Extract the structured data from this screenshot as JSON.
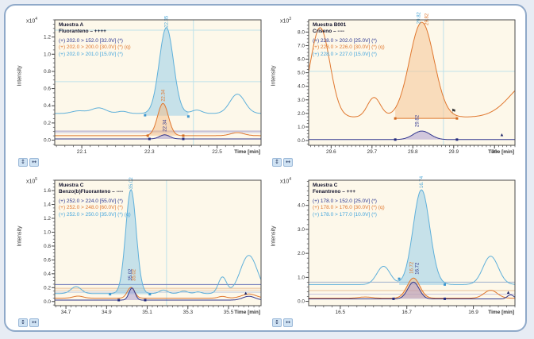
{
  "figure": {
    "outer_background": "#e7ecf4",
    "card_background": "#ffffff",
    "card_border": "#8fa9c9",
    "plot_background": "#fdf8ea",
    "axis_color": "#4a4a4a",
    "crosshair_color": "#bfe2ea",
    "tick_label_color": "#333333"
  },
  "ui": {
    "corner_buttons": [
      {
        "glyph": "↕",
        "name": "autoscale-y-button"
      },
      {
        "glyph": "↔",
        "name": "autoscale-x-button"
      }
    ]
  },
  "chart_data": [
    {
      "id": "muestra-a-fluoranteno",
      "type": "line",
      "scale_base": "x10",
      "scale_exp": "4",
      "ylabel": "Intensity",
      "xlabel": "Time [min]",
      "sample": "Muestra A",
      "compound": "Fluoranteno – ++++",
      "transitions": [
        {
          "label": "(+) 202.0 > 152.0 [32.0V] (*)",
          "color": "#2b3590"
        },
        {
          "label": "(+) 202.0 > 200.0 [30.0V] (*) (q)",
          "color": "#e0772e"
        },
        {
          "label": "(+) 202.0 > 201.0 [15.0V] (*)",
          "color": "#3fa3dc"
        }
      ],
      "x_range": [
        22.02,
        22.63
      ],
      "y_range": [
        -0.06,
        1.4
      ],
      "x_tick_vals": [
        22.1,
        22.3,
        22.5
      ],
      "x_tick_labels": [
        "22.1",
        "22.3",
        "22.5"
      ],
      "y_tick_vals": [
        0.0,
        0.2,
        0.4,
        0.6,
        0.8,
        1.0,
        1.2
      ],
      "x_minor_step": 0.025,
      "y_minor_step": 0.05,
      "crosshairs": {
        "v": [
          22.43
        ],
        "h": [
          1.28,
          0.68
        ]
      },
      "hlines": [
        {
          "y": 0.105,
          "color": "#a49fcb"
        },
        {
          "y": 0.088,
          "color": "#c8c5de"
        }
      ],
      "series": [
        {
          "name": "light-blue-trace",
          "color": "#5fb0da",
          "baseline": 0.31,
          "peaks": [
            [
              22.09,
              0.03,
              0.02
            ],
            [
              22.15,
              0.065,
              0.022
            ],
            [
              22.22,
              0.025,
              0.015
            ],
            [
              22.35,
              1.0,
              0.021
            ],
            [
              22.44,
              0.04,
              0.015
            ],
            [
              22.56,
              0.225,
              0.022
            ]
          ],
          "fill": {
            "from": 22.287,
            "to": 22.415,
            "base": 0.285,
            "color": "rgba(144,202,232,0.5)"
          }
        },
        {
          "name": "orange-trace",
          "color": "#e0772e",
          "baseline": 0.052,
          "peaks": [
            [
              22.34,
              0.375,
              0.016
            ],
            [
              22.56,
              0.035,
              0.02
            ]
          ],
          "fill": {
            "from": 22.295,
            "to": 22.4,
            "base": 0.052,
            "color": "rgba(243,188,134,0.5)"
          }
        },
        {
          "name": "navy-trace",
          "color": "#32378f",
          "baseline": 0.014,
          "peaks": [
            [
              22.345,
              0.048,
              0.015
            ]
          ],
          "fill": {
            "from": 22.3,
            "to": 22.4,
            "base": 0.014,
            "color": "rgba(160,145,200,0.5)"
          }
        }
      ],
      "segments": [],
      "markers": [
        {
          "x": 22.287,
          "y": 0.29,
          "color": "#3f97cf"
        },
        {
          "x": 22.415,
          "y": 0.275,
          "color": "#3f97cf"
        },
        {
          "x": 22.295,
          "y": 0.052,
          "color": "#d2691e"
        },
        {
          "x": 22.4,
          "y": 0.052,
          "color": "#d2691e"
        },
        {
          "x": 22.3,
          "y": 0.014,
          "color": "#232a7a"
        },
        {
          "x": 22.4,
          "y": 0.014,
          "color": "#232a7a"
        }
      ],
      "peak_labels": [
        {
          "x": 22.35,
          "y": 1.31,
          "text": "22.35",
          "color": "#4fa8d8"
        },
        {
          "x": 22.34,
          "y": 0.45,
          "text": "22.34",
          "color": "#e0772e"
        },
        {
          "x": 22.345,
          "y": 0.1,
          "text": "22.34",
          "color": "#32378f"
        }
      ],
      "glyphs": []
    },
    {
      "id": "muestra-b001-criseno",
      "type": "line",
      "scale_base": "x10",
      "scale_exp": "3",
      "ylabel": "Intensity",
      "xlabel": "Time [min]",
      "sample": "Muestra B001",
      "compound": "Criseno – ----",
      "transitions": [
        {
          "label": "(+) 228.0 > 202.0 [25.0V] (*)",
          "color": "#2b3590"
        },
        {
          "label": "(+) 228.0 > 226.0 [30.0V] (*) (q)",
          "color": "#e0772e"
        },
        {
          "label": "(+) 228.0 > 227.0 [15.0V] (*)",
          "color": "#3fa3dc"
        }
      ],
      "x_range": [
        29.545,
        30.05
      ],
      "y_range": [
        -0.35,
        8.9
      ],
      "x_tick_vals": [
        29.6,
        29.7,
        29.8,
        29.9,
        30
      ],
      "x_tick_labels": [
        "29.6",
        "29.7",
        "29.8",
        "29.9",
        "30"
      ],
      "y_tick_vals": [
        0.0,
        1.0,
        2.0,
        3.0,
        4.0,
        5.0,
        6.0,
        7.0,
        8.0
      ],
      "x_minor_step": 0.01,
      "y_minor_step": 0.25,
      "crosshairs": {
        "v": [
          29.875
        ],
        "h": [
          5.1
        ]
      },
      "hlines": [],
      "series": [
        {
          "name": "orange-trace",
          "color": "#e0772e",
          "baseline": 1.72,
          "peaks": [
            [
              29.573,
              6.6,
              0.024
            ],
            [
              29.705,
              1.45,
              0.016
            ],
            [
              29.822,
              7.0,
              0.03
            ],
            [
              30.09,
              2.7,
              0.05
            ]
          ],
          "fill": {
            "from": 29.757,
            "to": 29.908,
            "base": 1.63,
            "color": "rgba(246,196,148,0.55)"
          }
        },
        {
          "name": "navy-trace",
          "color": "#32378f",
          "baseline": 0.07,
          "peaks": [
            [
              29.822,
              0.63,
              0.021
            ]
          ],
          "fill": {
            "from": 29.757,
            "to": 29.908,
            "base": 0.07,
            "color": "rgba(165,150,205,0.5)"
          }
        }
      ],
      "segments": [
        {
          "x1": 29.757,
          "x2": 29.908,
          "y": 1.63,
          "color": "#e0772e"
        }
      ],
      "markers": [
        {
          "x": 29.757,
          "y": 1.63,
          "color": "#d2691e"
        },
        {
          "x": 29.908,
          "y": 1.63,
          "color": "#d2691e"
        },
        {
          "x": 29.757,
          "y": 0.07,
          "color": "#232a7a"
        },
        {
          "x": 29.908,
          "y": 0.07,
          "color": "#232a7a"
        }
      ],
      "peak_labels": [
        {
          "x": 29.814,
          "y": 8.6,
          "text": "29.82",
          "color": "#4fa8d8"
        },
        {
          "x": 29.833,
          "y": 8.5,
          "text": "29.82",
          "color": "#e0772e"
        },
        {
          "x": 29.81,
          "y": 1.0,
          "text": "29.82",
          "color": "#32378f"
        }
      ],
      "glyphs": [
        {
          "x": 29.9,
          "y": 2.05,
          "char": "⚑",
          "color": "#333333",
          "size": 7
        },
        {
          "x": 30.018,
          "y": 0.33,
          "char": "▲",
          "color": "#1c2266",
          "size": 6
        }
      ]
    },
    {
      "id": "muestra-c-benzo-b-fluoranteno",
      "type": "line",
      "scale_base": "x10",
      "scale_exp": "5",
      "ylabel": "Intensity",
      "xlabel": "Time [min]",
      "sample": "Muestra C",
      "compound": "Benzo(b)Fluoranteno – ----",
      "transitions": [
        {
          "label": "(+) 252.0 > 224.0 [55.0V] (*)",
          "color": "#2b3590"
        },
        {
          "label": "(+) 252.0 > 248.0 [60.0V] (*)",
          "color": "#e0772e"
        },
        {
          "label": "(+) 252.0 > 250.0 [35.0V] (*) (q)",
          "color": "#3fa3dc"
        }
      ],
      "x_range": [
        34.645,
        35.66
      ],
      "y_range": [
        -0.06,
        1.75
      ],
      "x_tick_vals": [
        34.7,
        34.9,
        35.1,
        35.3,
        35.5
      ],
      "x_tick_labels": [
        "34.7",
        "34.9",
        "35.1",
        "35.3",
        "35.5"
      ],
      "y_tick_vals": [
        0.0,
        0.2,
        0.4,
        0.6,
        0.8,
        1.0,
        1.2,
        1.4,
        1.6
      ],
      "x_minor_step": 0.025,
      "y_minor_step": 0.05,
      "crosshairs": {
        "v": [
          35.195
        ],
        "h": []
      },
      "hlines": [
        {
          "y": 0.245,
          "color": "#6a74b8"
        },
        {
          "y": 0.19,
          "color": "#e8bf96"
        },
        {
          "y": 0.165,
          "color": "#edd0b0"
        },
        {
          "y": 0.135,
          "color": "#b9c3da"
        }
      ],
      "series": [
        {
          "name": "light-blue-trace",
          "color": "#5fb0da",
          "baseline": 0.115,
          "peaks": [
            [
              34.75,
              0.1,
              0.025
            ],
            [
              35.02,
              1.5,
              0.026
            ],
            [
              35.18,
              0.05,
              0.02
            ],
            [
              35.28,
              0.035,
              0.02
            ],
            [
              35.35,
              0.025,
              0.015
            ],
            [
              35.47,
              0.235,
              0.02
            ],
            [
              35.6,
              0.55,
              0.042
            ]
          ],
          "fill": {
            "from": 34.917,
            "to": 35.113,
            "base": 0.105,
            "color": "rgba(144,202,232,0.5)"
          }
        },
        {
          "name": "orange-trace",
          "color": "#e0772e",
          "baseline": 0.048,
          "peaks": [
            [
              34.76,
              0.03,
              0.025
            ],
            [
              35.02,
              0.155,
              0.018
            ],
            [
              35.47,
              0.025,
              0.02
            ],
            [
              35.6,
              0.06,
              0.035
            ]
          ]
        },
        {
          "name": "navy-trace",
          "color": "#32378f",
          "baseline": 0.02,
          "peaks": [
            [
              35.025,
              0.175,
              0.015
            ],
            [
              35.6,
              0.055,
              0.03
            ]
          ],
          "fill": {
            "from": 34.96,
            "to": 35.09,
            "base": 0.02,
            "color": "rgba(165,150,205,0.5)"
          }
        }
      ],
      "segments": [],
      "markers": [
        {
          "x": 34.917,
          "y": 0.105,
          "color": "#3f97cf"
        },
        {
          "x": 35.113,
          "y": 0.105,
          "color": "#3f97cf"
        },
        {
          "x": 34.96,
          "y": 0.02,
          "color": "#232a7a"
        },
        {
          "x": 35.09,
          "y": 0.02,
          "color": "#232a7a"
        }
      ],
      "peak_labels": [
        {
          "x": 35.02,
          "y": 1.62,
          "text": "35.02",
          "color": "#4fa8d8"
        },
        {
          "x": 35.016,
          "y": 0.3,
          "text": "35.02",
          "color": "#32378f"
        },
        {
          "x": 35.034,
          "y": 0.295,
          "text": "35.02",
          "color": "#e0772e"
        }
      ],
      "glyphs": [
        {
          "x": 35.585,
          "y": 0.1,
          "char": "▲",
          "color": "#1c2266",
          "size": 6
        }
      ]
    },
    {
      "id": "muestra-c-fenantreno",
      "type": "line",
      "scale_base": "x10",
      "scale_exp": "4",
      "ylabel": "Intensity",
      "xlabel": "Time [min]",
      "sample": "Muestra C",
      "compound": "Fenantreno – +++",
      "transitions": [
        {
          "label": "(+) 178.0 > 152.0 [25.0V] (*)",
          "color": "#2b3590"
        },
        {
          "label": "(+) 178.0 > 176.0 [30.0V] (*) (q)",
          "color": "#e0772e"
        },
        {
          "label": "(+) 178.0 > 177.0 [10.0V] (*)",
          "color": "#3fa3dc"
        }
      ],
      "x_range": [
        16.405,
        17.025
      ],
      "y_range": [
        -0.18,
        5.05
      ],
      "x_tick_vals": [
        16.5,
        16.7,
        16.9
      ],
      "x_tick_labels": [
        "16.5",
        "16.7",
        "16.9"
      ],
      "y_tick_vals": [
        0.0,
        1.0,
        2.0,
        3.0,
        4.0
      ],
      "x_minor_step": 0.025,
      "y_minor_step": 0.2,
      "crosshairs": {
        "v": [],
        "h": []
      },
      "hlines": [
        {
          "y": 0.8,
          "color": "#9fb0cc"
        },
        {
          "y": 0.45,
          "color": "#e8bf96"
        },
        {
          "y": 0.3,
          "color": "#c8c5de"
        }
      ],
      "series": [
        {
          "name": "light-blue-trace",
          "color": "#5fb0da",
          "baseline": 0.7,
          "peaks": [
            [
              16.63,
              0.76,
              0.02
            ],
            [
              16.744,
              3.95,
              0.025
            ],
            [
              16.952,
              1.18,
              0.023
            ]
          ],
          "fill": {
            "from": 16.677,
            "to": 16.814,
            "base": 0.68,
            "color": "rgba(144,202,232,0.5)"
          }
        },
        {
          "name": "orange-trace",
          "color": "#e0772e",
          "baseline": 0.13,
          "peaks": [
            [
              16.575,
              0.05,
              0.02
            ],
            [
              16.72,
              0.84,
              0.019
            ],
            [
              16.952,
              0.33,
              0.02
            ]
          ],
          "fill": {
            "from": 16.66,
            "to": 16.8,
            "base": 0.13,
            "color": "rgba(243,188,134,0.5)"
          }
        },
        {
          "name": "navy-trace",
          "color": "#32378f",
          "baseline": 0.1,
          "peaks": [
            [
              16.72,
              0.7,
              0.017
            ],
            [
              17.012,
              0.17,
              0.01
            ]
          ],
          "fill": {
            "from": 16.66,
            "to": 16.8,
            "base": 0.1,
            "color": "rgba(165,150,205,0.5)"
          }
        }
      ],
      "segments": [],
      "markers": [
        {
          "x": 16.677,
          "y": 0.94,
          "color": "#3f97cf"
        },
        {
          "x": 16.814,
          "y": 0.7,
          "color": "#3f97cf"
        },
        {
          "x": 16.66,
          "y": 0.105,
          "color": "#232a7a"
        },
        {
          "x": 16.814,
          "y": 0.105,
          "color": "#232a7a"
        }
      ],
      "peak_labels": [
        {
          "x": 16.744,
          "y": 4.72,
          "text": "16.74",
          "color": "#4fa8d8"
        },
        {
          "x": 16.714,
          "y": 1.15,
          "text": "16.72",
          "color": "#e0772e"
        },
        {
          "x": 16.73,
          "y": 1.12,
          "text": "16.72",
          "color": "#32378f"
        }
      ],
      "glyphs": [
        {
          "x": 17.005,
          "y": 0.32,
          "char": "▲",
          "color": "#1c2266",
          "size": 6
        }
      ]
    }
  ]
}
